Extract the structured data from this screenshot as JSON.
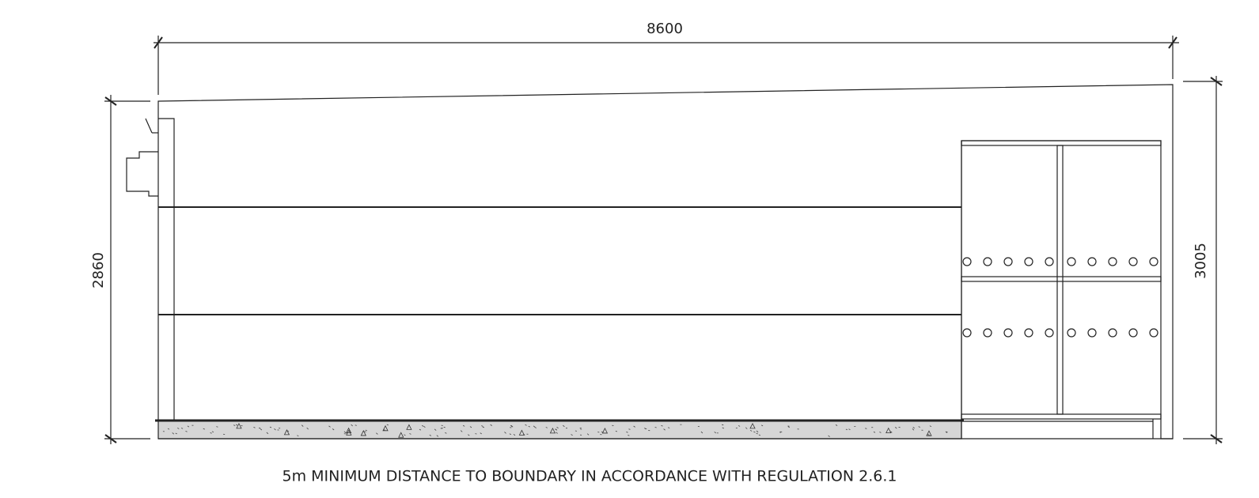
{
  "dimensions": {
    "width": "8600",
    "left_height": "2860",
    "right_height": "3005"
  },
  "caption": "5m MINIMUM DISTANCE TO BOUNDARY IN ACCORDANCE WITH REGULATION 2.6.1"
}
